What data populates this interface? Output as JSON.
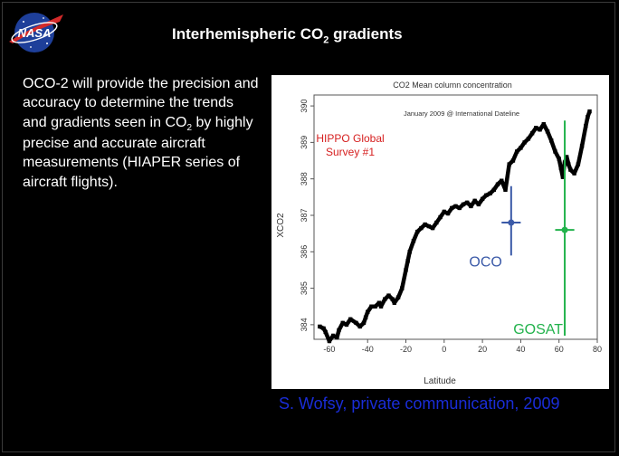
{
  "slide": {
    "title_main": "Interhemispheric CO",
    "title_sub": "2",
    "title_tail": " gradients",
    "body_part1": "OCO-2 will provide the precision and accuracy to determine the trends and gradients seen in CO",
    "body_sub": "2",
    "body_part2": " by highly precise and accurate aircraft measurements (HIAPER series of aircraft flights).",
    "attribution": "S. Wofsy, private communication, 2009",
    "logo_text": "NASA"
  },
  "colors": {
    "background": "#000000",
    "title": "#ffffff",
    "attribution": "#1a2dd8",
    "hippo_label": "#d62020",
    "oco": "#3b5aa8",
    "gosat": "#22b24c",
    "series": "#000000"
  },
  "chart_data": {
    "type": "scatter",
    "title": "CO2   Mean column concentration",
    "subtitle": "January 2009 @ International Dateline",
    "xlabel": "Latitude",
    "ylabel": "XCO2",
    "xlim": [
      -68,
      80
    ],
    "ylim": [
      383.6,
      390.3
    ],
    "xticks": [
      -60,
      -40,
      -20,
      0,
      20,
      40,
      60,
      80
    ],
    "yticks": [
      384,
      385,
      386,
      387,
      388,
      389,
      390
    ],
    "grid": false,
    "series_label": "HIPPO Global Survey #1",
    "series_label_lines": [
      "HIPPO Global",
      "Survey #1"
    ],
    "series": [
      {
        "name": "HIPPO",
        "x": [
          -65,
          -63,
          -62,
          -60,
          -58,
          -56,
          -55,
          -53,
          -51,
          -49,
          -46,
          -44,
          -42,
          -41,
          -40,
          -38,
          -36,
          -34,
          -33,
          -31,
          -29,
          -27,
          -26,
          -24,
          -22,
          -20,
          -19,
          -18,
          -16,
          -14,
          -12,
          -10,
          -8,
          -6,
          -4,
          -2,
          0,
          2,
          4,
          6,
          8,
          10,
          12,
          14,
          16,
          18,
          20,
          22,
          24,
          26,
          28,
          30,
          32,
          34,
          36,
          38,
          40,
          42,
          44,
          46,
          48,
          50,
          52,
          54,
          56,
          58,
          60,
          61,
          62,
          63,
          64,
          65,
          66,
          68,
          70,
          72,
          74,
          75,
          76
        ],
        "y": [
          383.95,
          383.9,
          383.8,
          383.55,
          383.7,
          383.65,
          383.85,
          384.05,
          384.0,
          384.15,
          384.05,
          383.95,
          384.05,
          384.2,
          384.35,
          384.5,
          384.5,
          384.6,
          384.5,
          384.7,
          384.8,
          384.7,
          384.6,
          384.75,
          385.0,
          385.5,
          385.75,
          386.0,
          386.3,
          386.55,
          386.65,
          386.75,
          386.7,
          386.65,
          386.8,
          386.95,
          387.1,
          387.05,
          387.2,
          387.25,
          387.2,
          387.3,
          387.35,
          387.25,
          387.4,
          387.3,
          387.45,
          387.55,
          387.6,
          387.7,
          387.85,
          387.95,
          387.7,
          388.4,
          388.5,
          388.75,
          388.85,
          389.0,
          389.1,
          389.25,
          389.4,
          389.35,
          389.5,
          389.3,
          389.05,
          388.75,
          388.55,
          388.3,
          388.05,
          388.45,
          388.6,
          388.4,
          388.25,
          388.15,
          388.4,
          388.9,
          389.45,
          389.7,
          389.85
        ]
      }
    ],
    "points": [
      {
        "name": "OCO",
        "x": 35,
        "y": 386.8,
        "y_err": [
          385.9,
          387.8
        ],
        "x_err": [
          30,
          40
        ]
      },
      {
        "name": "GOSAT",
        "x": 63,
        "y": 386.6,
        "y_err": [
          383.7,
          389.6
        ],
        "x_err": [
          58,
          68
        ]
      }
    ]
  }
}
